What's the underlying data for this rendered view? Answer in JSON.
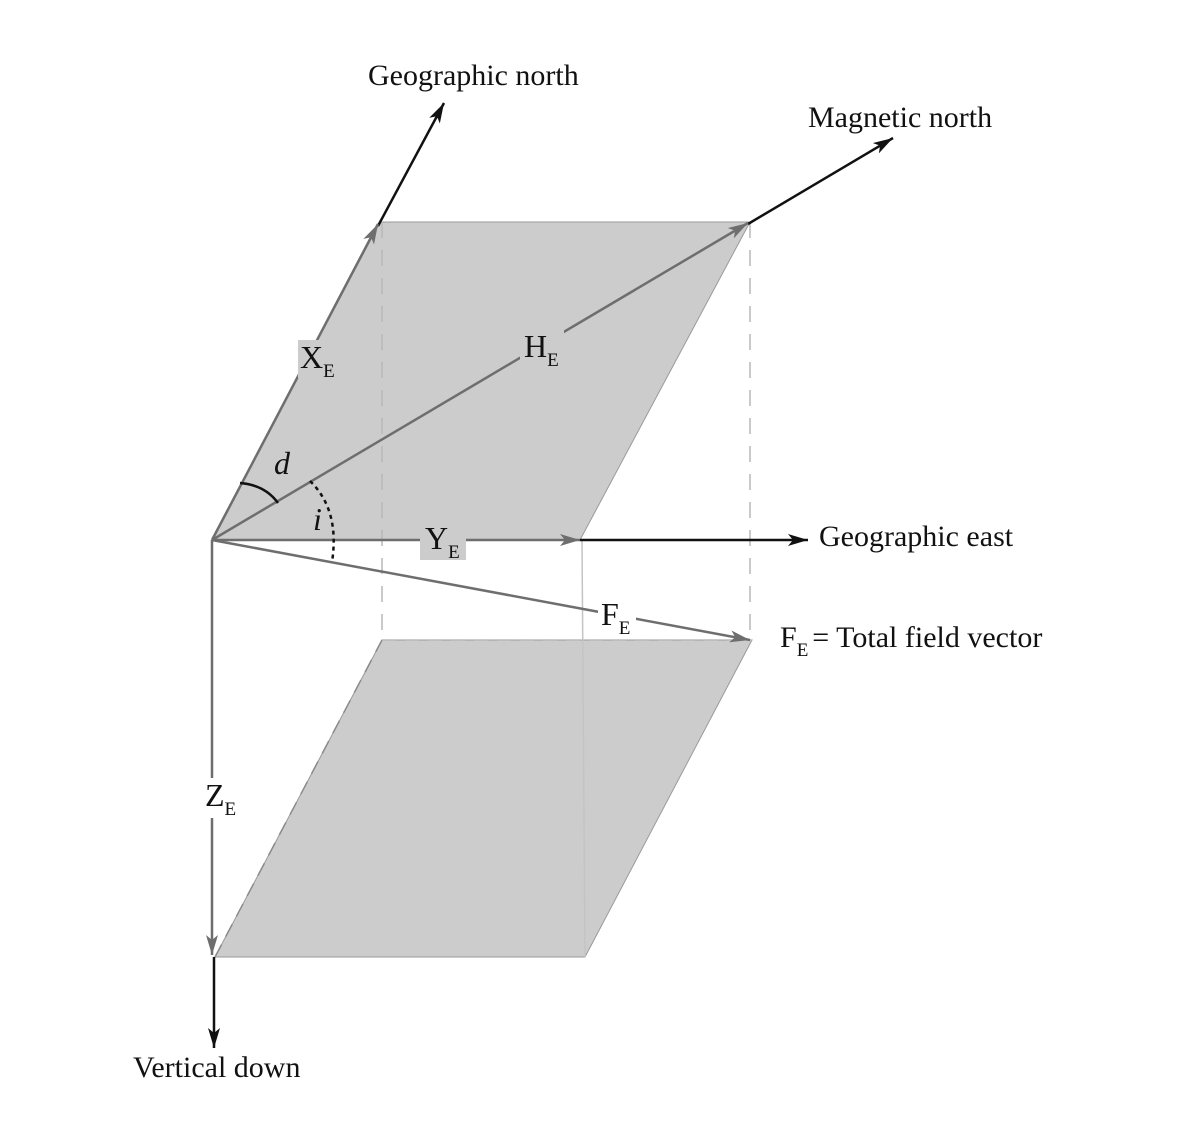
{
  "labels": {
    "geographic_north": "Geographic north",
    "magnetic_north": "Magnetic north",
    "geographic_east": "Geographic east",
    "vertical_down": "Vertical down",
    "total_field": "= Total field vector"
  },
  "components": {
    "x": {
      "main": "X",
      "sub": "E"
    },
    "y": {
      "main": "Y",
      "sub": "E"
    },
    "z": {
      "main": "Z",
      "sub": "E"
    },
    "h": {
      "main": "H",
      "sub": "E"
    },
    "f": {
      "main": "F",
      "sub": "E"
    },
    "f_legend": {
      "main": "F",
      "sub": "E"
    }
  },
  "angles": {
    "declination": "d",
    "inclination": "i"
  },
  "colors": {
    "plane_fill": "#cccccc",
    "vector_gray": "#6e6e6e",
    "arrow_black": "#111111",
    "dashed": "#b8b8b8"
  }
}
